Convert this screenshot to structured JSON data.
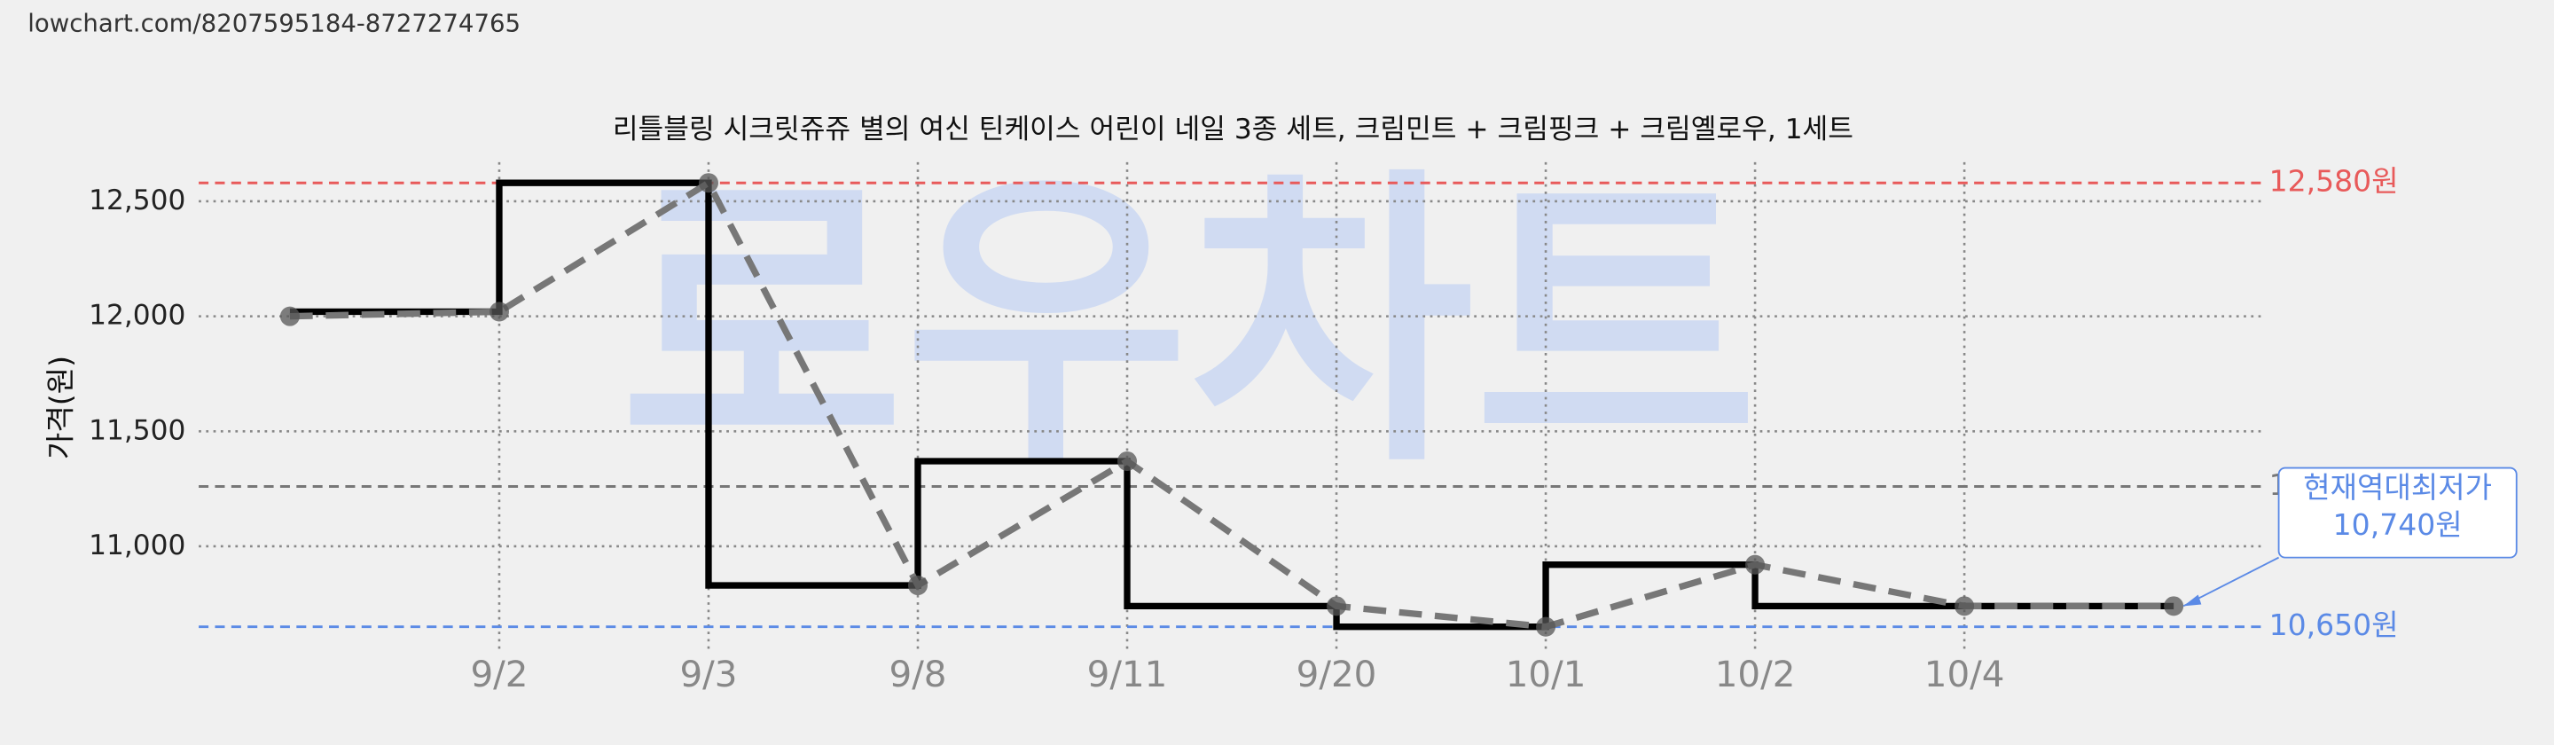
{
  "url": "lowchart.com/8207595184-8727274765",
  "chart_data": {
    "type": "line",
    "title": "리틀블링 시크릿쥬쥬 별의 여신 틴케이스 어린이 네일 3종 세트, 크림민트 + 크림핑크 + 크림옐로우, 1세트",
    "watermark": "로우차트",
    "ylabel": "가격(원)",
    "categories": [
      null,
      "9/2",
      "9/3",
      "9/8",
      "9/11",
      "9/20",
      "10/1",
      "10/2",
      "10/4",
      null
    ],
    "values": [
      12000,
      12020,
      12580,
      10830,
      11370,
      10740,
      10650,
      10920,
      10740,
      10740
    ],
    "color": "#000000",
    "trend_color": "#777777",
    "ylim": [
      10540,
      12670
    ],
    "yticks": [
      {
        "value": 11000,
        "label": "11,000"
      },
      {
        "value": 11500,
        "label": "11,500"
      },
      {
        "value": 12000,
        "label": "12,000"
      },
      {
        "value": 12500,
        "label": "12,500"
      }
    ],
    "grid": true,
    "reference_lines": [
      {
        "value": 12580,
        "label": "12,580원",
        "color": "#e85a5a"
      },
      {
        "value": 10650,
        "label": "10,650원",
        "color": "#5b8ae6"
      },
      {
        "value": 11260,
        "label": "1",
        "color": "#777777"
      }
    ],
    "annotation": {
      "lines": [
        "현재역대최저가",
        "10,740원"
      ],
      "color": "#5b8ae6"
    }
  }
}
